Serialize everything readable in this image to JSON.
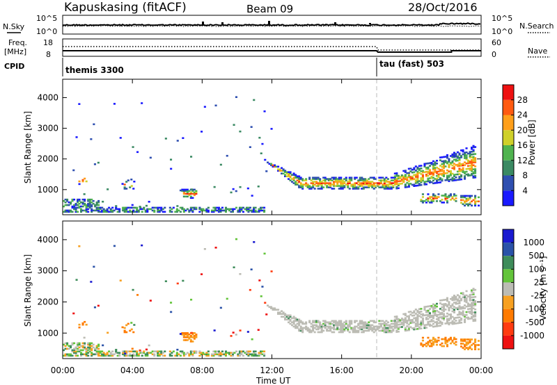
{
  "header": {
    "station": "Kapuskasing (fitACF)",
    "beam": "Beam 09",
    "date": "28/Oct/2016"
  },
  "top_panels": {
    "nsky_label": "N.Sky",
    "nsearch_label": "N.Search",
    "nsky_ticks": [
      "10^5",
      "10^0"
    ],
    "nsearch_ticks": [
      "10^5",
      "10^0"
    ],
    "freq_label_1": "Freq.",
    "freq_label_2": "[MHz]",
    "freq_ticks": [
      "18",
      "8"
    ],
    "nave_label": "Nave",
    "nave_ticks": [
      "60",
      "0"
    ],
    "cpid_label": "CPID",
    "cpid_segments": [
      {
        "name": "themis 3300",
        "start_hour": 0
      },
      {
        "name": "tau (fast) 503",
        "start_hour": 18.0
      }
    ]
  },
  "chart_data": [
    {
      "type": "heatmap",
      "quantity": "power",
      "ylabel": "Slant Range [km]",
      "ylim": [
        180,
        4600
      ],
      "yticks": [
        1000,
        2000,
        3000,
        4000
      ],
      "colorbar_label": "Power [dB]",
      "colorbar_ticks": [
        4,
        8,
        12,
        16,
        20,
        24,
        28
      ],
      "colorbar_range": [
        0,
        32
      ],
      "colors": [
        "#1a1aff",
        "#2f4fb0",
        "#3b8a63",
        "#4fb34f",
        "#cfd02a",
        "#ff9f1a",
        "#ff5a10",
        "#ee1111"
      ],
      "mode_change_hour": 18.0
    },
    {
      "type": "heatmap",
      "quantity": "velocity",
      "ylabel": "Slant Range [km]",
      "ylim": [
        180,
        4600
      ],
      "yticks": [
        1000,
        2000,
        3000,
        4000
      ],
      "colorbar_label": "Velocity [m s⁻¹]",
      "colorbar_ticks": [
        "1000",
        "500",
        "100",
        "25",
        "-25",
        "-100",
        "-500",
        "-1000"
      ],
      "colors": [
        "#1a1ad0",
        "#2a52a8",
        "#3e8c5a",
        "#63c43a",
        "#bcbcb4",
        "#f7a021",
        "#ff7a00",
        "#ff3b10",
        "#ee1111"
      ],
      "mode_change_hour": 18.0
    }
  ],
  "time_axis": {
    "label": "Time UT",
    "ticks": [
      "00:00",
      "04:00",
      "08:00",
      "12:00",
      "16:00",
      "20:00",
      "00:00"
    ],
    "range_hours": [
      0,
      24
    ]
  }
}
